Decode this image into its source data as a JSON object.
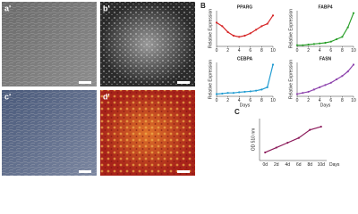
{
  "figure": {
    "image_labels": [
      "a'",
      "b'",
      "c'",
      "d'"
    ],
    "panel_labels": [
      "B",
      "C"
    ]
  },
  "chart_data": [
    {
      "type": "line",
      "title": "PPARG",
      "ylabel": "Relative Expression",
      "color": "#d62728",
      "x": [
        0,
        1,
        2,
        3,
        4,
        5,
        6,
        7,
        8,
        9,
        10
      ],
      "values": [
        1.0,
        0.85,
        0.6,
        0.45,
        0.4,
        0.45,
        0.55,
        0.7,
        0.85,
        0.95,
        1.3
      ],
      "xlim": [
        0,
        10
      ],
      "xticks": [
        0,
        2,
        4,
        6,
        8,
        10
      ],
      "ylim": [
        0,
        1.5
      ]
    },
    {
      "type": "line",
      "title": "FABP4",
      "ylabel": "Relative Expression",
      "color": "#2ca02c",
      "x": [
        0,
        1,
        2,
        3,
        4,
        5,
        6,
        7,
        8,
        9,
        10
      ],
      "values": [
        0.1,
        0.1,
        0.15,
        0.2,
        0.25,
        0.3,
        0.4,
        0.6,
        0.8,
        1.6,
        2.8
      ],
      "xlim": [
        0,
        10
      ],
      "xticks": [
        0,
        2,
        4,
        6,
        8,
        10
      ],
      "ylim": [
        0,
        3
      ]
    },
    {
      "type": "line",
      "title": "CEBPA",
      "ylabel": "Relative Expression",
      "xlabel": "Days",
      "color": "#1f9bd1",
      "x": [
        0,
        1,
        2,
        3,
        4,
        5,
        6,
        7,
        8,
        9,
        10
      ],
      "values": [
        0.1,
        0.12,
        0.15,
        0.15,
        0.18,
        0.2,
        0.22,
        0.25,
        0.3,
        0.4,
        1.4
      ],
      "xlim": [
        0,
        10
      ],
      "xticks": [
        0,
        2,
        4,
        6,
        8,
        10
      ],
      "ylim": [
        0,
        1.5
      ]
    },
    {
      "type": "line",
      "title": "FASN",
      "ylabel": "Relative Expression",
      "xlabel": "Days",
      "color": "#8e44ad",
      "x": [
        0,
        1,
        2,
        3,
        4,
        5,
        6,
        7,
        8,
        9,
        10
      ],
      "values": [
        0.1,
        0.15,
        0.2,
        0.3,
        0.4,
        0.5,
        0.6,
        0.75,
        0.9,
        1.1,
        1.4
      ],
      "xlim": [
        0,
        10
      ],
      "xticks": [
        0,
        2,
        4,
        6,
        8,
        10
      ],
      "ylim": [
        0,
        1.5
      ]
    },
    {
      "type": "line",
      "ylabel": "OD 510 nm",
      "xlabel": "Days",
      "color": "#8b1a5a",
      "categories": [
        "0d",
        "2d",
        "4d",
        "6d",
        "8d",
        "10d"
      ],
      "values": [
        0.25,
        0.4,
        0.55,
        0.7,
        0.95,
        1.05
      ],
      "ylim": [
        0,
        1.3
      ]
    }
  ]
}
